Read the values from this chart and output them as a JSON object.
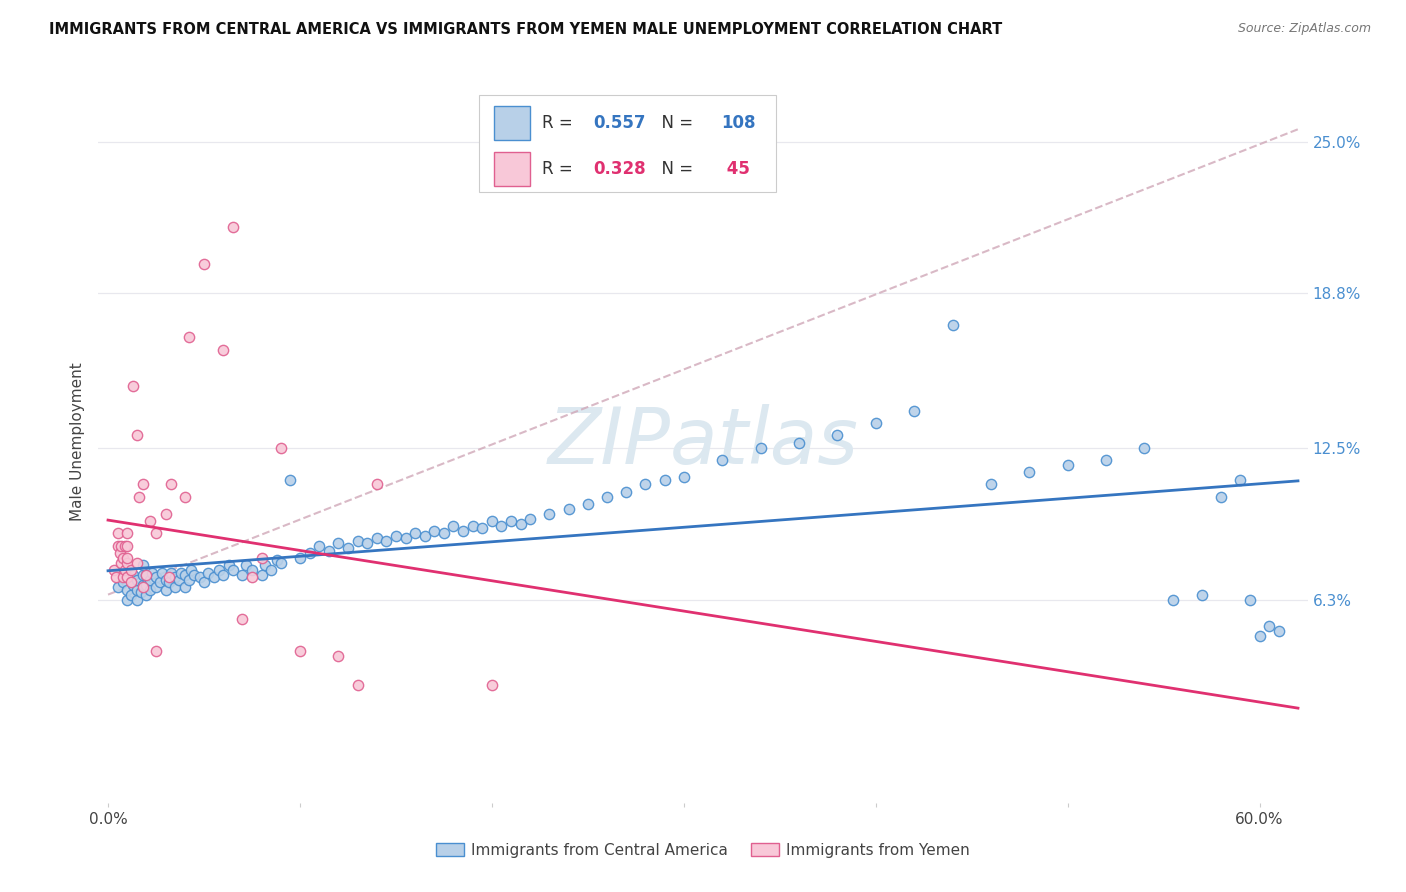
{
  "title": "IMMIGRANTS FROM CENTRAL AMERICA VS IMMIGRANTS FROM YEMEN MALE UNEMPLOYMENT CORRELATION CHART",
  "source": "Source: ZipAtlas.com",
  "ylabel": "Male Unemployment",
  "y_tick_labels": [
    "6.3%",
    "12.5%",
    "18.8%",
    "25.0%"
  ],
  "y_tick_values": [
    0.063,
    0.125,
    0.188,
    0.25
  ],
  "x_range": [
    -0.005,
    0.625
  ],
  "y_range": [
    -0.02,
    0.275
  ],
  "legend_blue_r": "0.557",
  "legend_blue_n": "108",
  "legend_pink_r": "0.328",
  "legend_pink_n": " 45",
  "legend_label_blue": "Immigrants from Central America",
  "legend_label_pink": "Immigrants from Yemen",
  "blue_scatter_color": "#b8d0e8",
  "blue_edge_color": "#4a8fd0",
  "pink_scatter_color": "#f8c8d8",
  "pink_edge_color": "#e06090",
  "blue_line_color": "#3575c0",
  "pink_line_color": "#e03070",
  "pink_dash_color": "#d0a8b8",
  "watermark": "ZIPatlas",
  "watermark_color": "#dce8f0",
  "background_color": "#ffffff",
  "grid_color": "#e8e8ee",
  "blue_scatter_x": [
    0.005,
    0.008,
    0.01,
    0.01,
    0.01,
    0.012,
    0.013,
    0.013,
    0.015,
    0.015,
    0.015,
    0.017,
    0.018,
    0.018,
    0.018,
    0.02,
    0.02,
    0.02,
    0.022,
    0.022,
    0.023,
    0.025,
    0.025,
    0.027,
    0.028,
    0.03,
    0.03,
    0.032,
    0.033,
    0.035,
    0.035,
    0.037,
    0.038,
    0.04,
    0.04,
    0.042,
    0.043,
    0.045,
    0.048,
    0.05,
    0.052,
    0.055,
    0.058,
    0.06,
    0.063,
    0.065,
    0.07,
    0.072,
    0.075,
    0.08,
    0.082,
    0.085,
    0.088,
    0.09,
    0.095,
    0.1,
    0.105,
    0.11,
    0.115,
    0.12,
    0.125,
    0.13,
    0.135,
    0.14,
    0.145,
    0.15,
    0.155,
    0.16,
    0.165,
    0.17,
    0.175,
    0.18,
    0.185,
    0.19,
    0.195,
    0.2,
    0.205,
    0.21,
    0.215,
    0.22,
    0.23,
    0.24,
    0.25,
    0.26,
    0.27,
    0.28,
    0.29,
    0.3,
    0.32,
    0.34,
    0.36,
    0.38,
    0.4,
    0.42,
    0.44,
    0.46,
    0.48,
    0.5,
    0.52,
    0.54,
    0.555,
    0.57,
    0.58,
    0.59,
    0.595,
    0.6,
    0.605,
    0.61
  ],
  "blue_scatter_y": [
    0.068,
    0.07,
    0.063,
    0.067,
    0.072,
    0.065,
    0.069,
    0.073,
    0.063,
    0.067,
    0.071,
    0.066,
    0.069,
    0.073,
    0.077,
    0.065,
    0.069,
    0.073,
    0.067,
    0.071,
    0.074,
    0.068,
    0.072,
    0.07,
    0.074,
    0.067,
    0.071,
    0.07,
    0.074,
    0.068,
    0.072,
    0.071,
    0.074,
    0.068,
    0.073,
    0.071,
    0.075,
    0.073,
    0.072,
    0.07,
    0.074,
    0.072,
    0.075,
    0.073,
    0.077,
    0.075,
    0.073,
    0.077,
    0.075,
    0.073,
    0.077,
    0.075,
    0.079,
    0.078,
    0.112,
    0.08,
    0.082,
    0.085,
    0.083,
    0.086,
    0.084,
    0.087,
    0.086,
    0.088,
    0.087,
    0.089,
    0.088,
    0.09,
    0.089,
    0.091,
    0.09,
    0.093,
    0.091,
    0.093,
    0.092,
    0.095,
    0.093,
    0.095,
    0.094,
    0.096,
    0.098,
    0.1,
    0.102,
    0.105,
    0.107,
    0.11,
    0.112,
    0.113,
    0.12,
    0.125,
    0.127,
    0.13,
    0.135,
    0.14,
    0.175,
    0.11,
    0.115,
    0.118,
    0.12,
    0.125,
    0.063,
    0.065,
    0.105,
    0.112,
    0.063,
    0.048,
    0.052,
    0.05
  ],
  "pink_scatter_x": [
    0.003,
    0.004,
    0.005,
    0.005,
    0.006,
    0.007,
    0.007,
    0.008,
    0.008,
    0.009,
    0.009,
    0.01,
    0.01,
    0.01,
    0.01,
    0.01,
    0.012,
    0.012,
    0.013,
    0.015,
    0.015,
    0.016,
    0.018,
    0.018,
    0.02,
    0.022,
    0.025,
    0.025,
    0.03,
    0.032,
    0.033,
    0.04,
    0.042,
    0.05,
    0.06,
    0.065,
    0.07,
    0.075,
    0.08,
    0.09,
    0.1,
    0.12,
    0.13,
    0.14,
    0.2
  ],
  "pink_scatter_y": [
    0.075,
    0.072,
    0.085,
    0.09,
    0.082,
    0.078,
    0.085,
    0.072,
    0.08,
    0.075,
    0.085,
    0.072,
    0.078,
    0.08,
    0.085,
    0.09,
    0.07,
    0.075,
    0.15,
    0.078,
    0.13,
    0.105,
    0.068,
    0.11,
    0.073,
    0.095,
    0.042,
    0.09,
    0.098,
    0.072,
    0.11,
    0.105,
    0.17,
    0.2,
    0.165,
    0.215,
    0.055,
    0.072,
    0.08,
    0.125,
    0.042,
    0.04,
    0.028,
    0.11,
    0.028
  ]
}
